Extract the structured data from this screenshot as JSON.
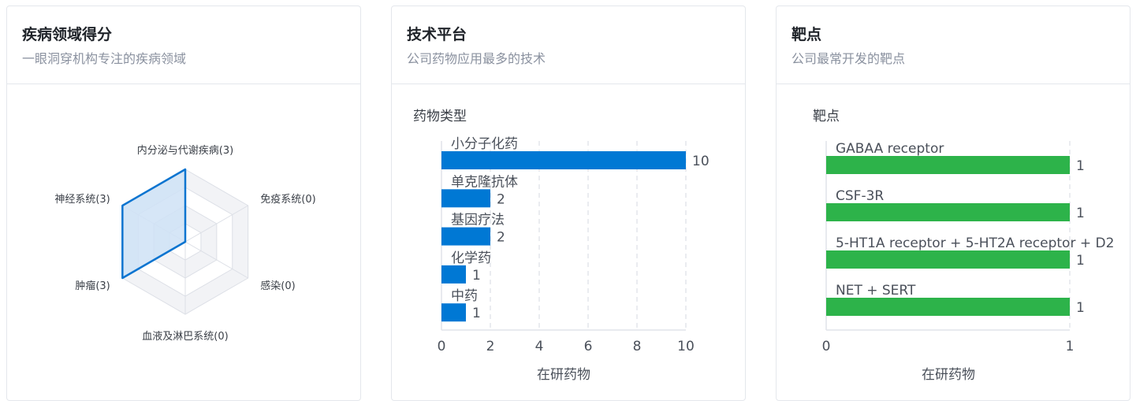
{
  "panels": [
    {
      "title": "疾病领域得分",
      "subtitle": "一眼洞穿机构专注的疾病领域"
    },
    {
      "title": "技术平台",
      "subtitle": "公司药物应用最多的技术"
    },
    {
      "title": "靶点",
      "subtitle": "公司最常开发的靶点"
    }
  ],
  "chart_data": [
    {
      "type": "radar",
      "axes": [
        "内分泌与代谢疾病",
        "免疫系统",
        "感染",
        "血液及淋巴系统",
        "肿瘤",
        "神经系统"
      ],
      "values": [
        3,
        0,
        0,
        0,
        3,
        3
      ],
      "labels": [
        "内分泌与代谢疾病(3)",
        "免疫系统(0)",
        "感染(0)",
        "血液及淋巴系统(0)",
        "肿瘤(3)",
        "神经系统(3)"
      ],
      "max": 3,
      "color": "#0a74d0",
      "fill": "#cfe2f6"
    },
    {
      "type": "bar",
      "orientation": "horizontal",
      "ylabel": "药物类型",
      "xlabel": "在研药物",
      "categories": [
        "小分子化药",
        "单克隆抗体",
        "基因疗法",
        "化学药",
        "中药"
      ],
      "values": [
        10,
        2,
        2,
        1,
        1
      ],
      "xlim": [
        0,
        10
      ],
      "ticks": [
        0,
        2,
        4,
        6,
        8,
        10
      ],
      "color": "#0078d4",
      "grid": true
    },
    {
      "type": "bar",
      "orientation": "horizontal",
      "ylabel": "靶点",
      "xlabel": "在研药物",
      "categories": [
        "GABAA receptor",
        "CSF-3R",
        "5-HT1A receptor + 5-HT2A receptor + D2",
        "NET + SERT"
      ],
      "values": [
        1,
        1,
        1,
        1
      ],
      "xlim": [
        0,
        1
      ],
      "ticks": [
        0,
        1
      ],
      "color": "#2db34a",
      "grid": true
    }
  ]
}
